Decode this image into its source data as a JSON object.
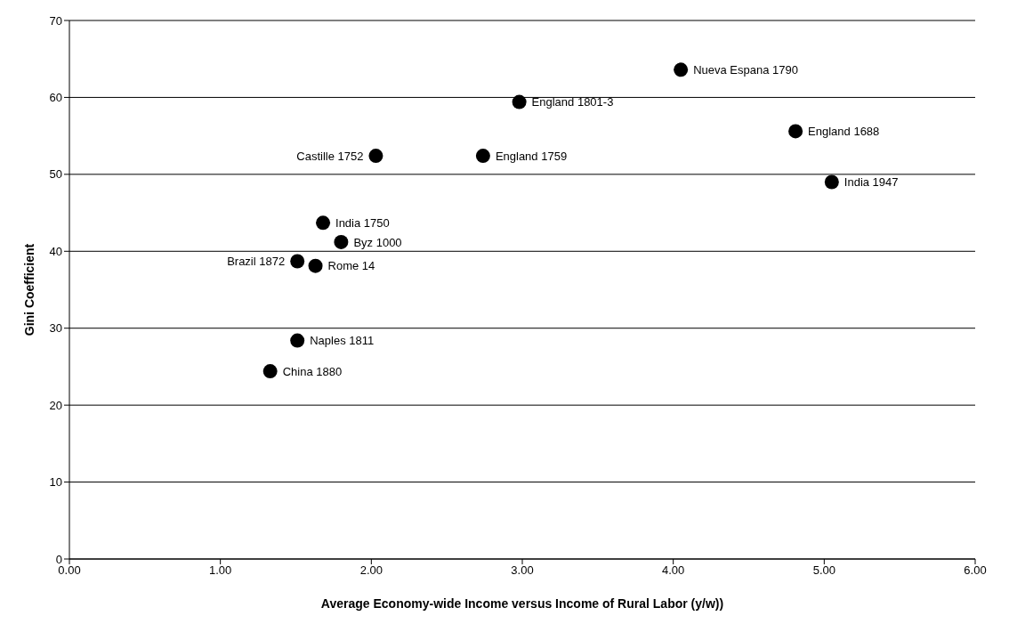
{
  "chart_data": {
    "type": "scatter",
    "xlabel": "Average Economy-wide Income versus Income of Rural Labor (y/w))",
    "ylabel": "Gini Coefficient",
    "xlim": [
      0,
      6
    ],
    "xticks": [
      {
        "value": 0,
        "label": "0.00"
      },
      {
        "value": 1,
        "label": "1.00"
      },
      {
        "value": 2,
        "label": "2.00"
      },
      {
        "value": 3,
        "label": "3.00"
      },
      {
        "value": 4,
        "label": "4.00"
      },
      {
        "value": 5,
        "label": "5.00"
      },
      {
        "value": 6,
        "label": "6.00"
      }
    ],
    "ylim": [
      0,
      70
    ],
    "yticks": [
      0,
      10,
      20,
      30,
      40,
      50,
      60,
      70
    ],
    "grid": "y",
    "marker": "circle",
    "legend": false,
    "series": [
      {
        "color": "#000000",
        "x": [
          4.05,
          2.98,
          4.81,
          2.03,
          2.74,
          5.05,
          1.68,
          1.8,
          1.51,
          1.63,
          1.51,
          1.33
        ],
        "values": [
          63.6,
          59.4,
          55.6,
          52.4,
          52.4,
          49.0,
          43.7,
          41.2,
          38.7,
          38.1,
          28.4,
          24.4
        ]
      }
    ],
    "annotations": [
      {
        "text": "Nueva Espana 1790",
        "x": 4.05,
        "y": 63.6
      },
      {
        "text": "England 1801-3",
        "x": 2.98,
        "y": 59.4
      },
      {
        "text": "England 1688",
        "x": 4.81,
        "y": 55.6
      },
      {
        "text": "Castille 1752",
        "x": 2.03,
        "y": 52.4
      },
      {
        "text": "England 1759",
        "x": 2.74,
        "y": 52.4
      },
      {
        "text": "India 1947",
        "x": 5.05,
        "y": 49.0
      },
      {
        "text": "India 1750",
        "x": 1.68,
        "y": 43.7
      },
      {
        "text": "Byz 1000",
        "x": 1.8,
        "y": 41.2
      },
      {
        "text": "Brazil 1872",
        "x": 1.51,
        "y": 38.7
      },
      {
        "text": "Rome 14",
        "x": 1.63,
        "y": 38.1
      },
      {
        "text": "Naples 1811",
        "x": 1.51,
        "y": 28.4
      },
      {
        "text": "China 1880",
        "x": 1.33,
        "y": 24.4
      }
    ]
  }
}
